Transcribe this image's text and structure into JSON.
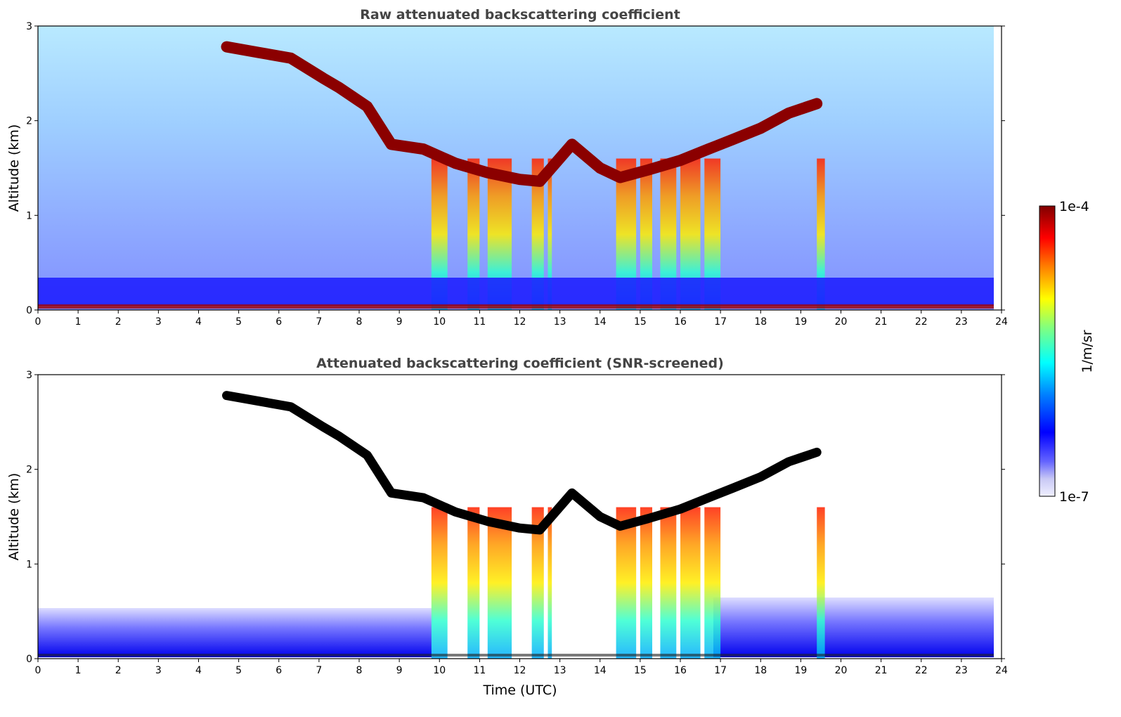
{
  "chart_data": [
    {
      "type": "heatmap",
      "title": "Raw attenuated backscattering coefficient",
      "xlabel": "",
      "ylabel": "Altitude (km)",
      "xlim": [
        0,
        24
      ],
      "ylim": [
        0,
        3
      ],
      "x_ticks": [
        "0",
        "1",
        "2",
        "3",
        "4",
        "5",
        "6",
        "7",
        "8",
        "9",
        "10",
        "11",
        "12",
        "13",
        "14",
        "15",
        "16",
        "17",
        "18",
        "19",
        "20",
        "21",
        "22",
        "23",
        "24"
      ],
      "y_ticks": [
        "0",
        "1",
        "2",
        "3"
      ],
      "screened": false,
      "cloud_layer_km": [
        [
          4.7,
          2.78
        ],
        [
          5.5,
          2.72
        ],
        [
          6.3,
          2.66
        ],
        [
          7.1,
          2.45
        ],
        [
          7.5,
          2.35
        ],
        [
          8.2,
          2.15
        ],
        [
          8.8,
          1.75
        ],
        [
          9.6,
          1.7
        ],
        [
          10.4,
          1.55
        ],
        [
          11.2,
          1.45
        ],
        [
          12.0,
          1.38
        ],
        [
          12.5,
          1.36
        ],
        [
          13.3,
          1.75
        ],
        [
          14.0,
          1.5
        ],
        [
          14.5,
          1.4
        ],
        [
          15.2,
          1.48
        ],
        [
          16.0,
          1.58
        ],
        [
          16.7,
          1.7
        ],
        [
          17.3,
          1.8
        ],
        [
          18.0,
          1.92
        ],
        [
          18.7,
          2.08
        ],
        [
          19.4,
          2.18
        ]
      ]
    },
    {
      "type": "heatmap",
      "title": "Attenuated backscattering coefficient (SNR-screened)",
      "xlabel": "Time (UTC)",
      "ylabel": "Altitude (km)",
      "xlim": [
        0,
        24
      ],
      "ylim": [
        0,
        3
      ],
      "x_ticks": [
        "0",
        "1",
        "2",
        "3",
        "4",
        "5",
        "6",
        "7",
        "8",
        "9",
        "10",
        "11",
        "12",
        "13",
        "14",
        "15",
        "16",
        "17",
        "18",
        "19",
        "20",
        "21",
        "22",
        "23",
        "24"
      ],
      "y_ticks": [
        "0",
        "1",
        "2",
        "3"
      ],
      "screened": true
    }
  ],
  "colorbar": {
    "label": "1/m/sr",
    "max_label": "1e-4",
    "min_label": "1e-7",
    "colormap": "jet",
    "colors": [
      "#e6e6fa",
      "#0000ff",
      "#00ffff",
      "#ffff00",
      "#ff0000",
      "#800000"
    ]
  }
}
